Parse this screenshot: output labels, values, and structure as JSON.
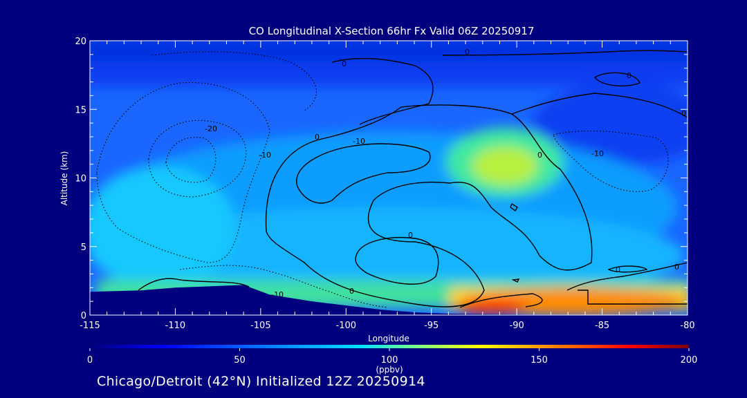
{
  "chart_data": {
    "type": "heatmap",
    "title": "CO Longitudinal X-Section 66hr  Fx Valid 06Z 20250917",
    "xlabel": "Longitude",
    "ylabel": "Altitude (km)",
    "xlim": [
      -115,
      -80
    ],
    "ylim": [
      0,
      20
    ],
    "x_ticks": [
      "-115",
      "-110",
      "-105",
      "-100",
      "-95",
      "-90",
      "-85",
      "-80"
    ],
    "x_tick_values": [
      -115,
      -110,
      -105,
      -100,
      -95,
      -90,
      -85,
      -80
    ],
    "y_ticks": [
      "0",
      "5",
      "10",
      "15",
      "20"
    ],
    "y_tick_values": [
      0,
      5,
      10,
      15,
      20
    ],
    "colorbar": {
      "min": 0,
      "max": 200,
      "ticks": [
        "0",
        "50",
        "100",
        "150",
        "200"
      ],
      "tick_values": [
        0,
        50,
        100,
        150,
        200
      ],
      "units": "(ppbv)"
    },
    "contour_labels": [
      "0",
      "0",
      "0",
      "0",
      "0",
      "0",
      "0",
      "0",
      "0",
      "0",
      "-10",
      "-10",
      "-10",
      "-10",
      "-20"
    ],
    "terrain": [
      [
        -115,
        1.7
      ],
      [
        -112,
        1.8
      ],
      [
        -110,
        2.0
      ],
      [
        -108,
        2.1
      ],
      [
        -106,
        2.2
      ],
      [
        -104.5,
        1.5
      ],
      [
        -102,
        1.0
      ],
      [
        -100,
        0.7
      ],
      [
        -98,
        0.4
      ],
      [
        -96,
        0.2
      ],
      [
        -94,
        0.1
      ],
      [
        -90,
        0.05
      ],
      [
        -80,
        0.0
      ]
    ]
  },
  "caption": "Chicago/Detroit (42°N) Initialized 12Z 20250914"
}
